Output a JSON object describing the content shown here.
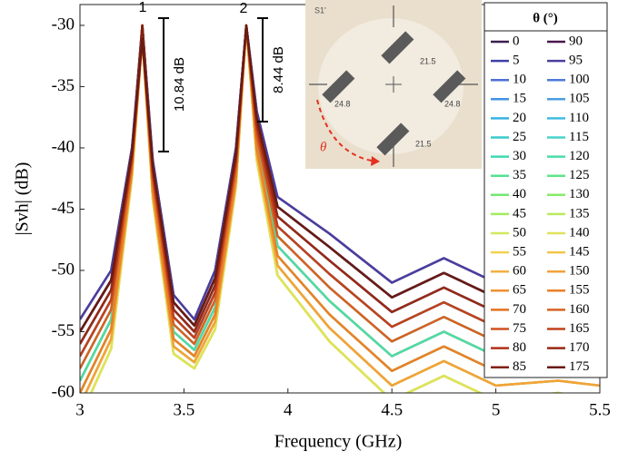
{
  "chart_data": {
    "type": "line",
    "xlabel": "Frequency (GHz)",
    "ylabel": "|Svh| (dB)",
    "xlim": [
      3,
      5.5
    ],
    "ylim": [
      -60,
      -28.3
    ],
    "xticks": [
      3,
      3.5,
      4,
      4.5,
      5,
      5.5
    ],
    "yticks": [
      -60,
      -55,
      -50,
      -45,
      -40,
      -35,
      -30
    ],
    "legend_title": "θ (°)",
    "legend": "upper right",
    "annotations": [
      "1",
      "2",
      "10.84 dB",
      "8.44 dB"
    ],
    "inset": {
      "label": "S1'",
      "values": [
        "21.5",
        "24.8",
        "24.8",
        "21.5"
      ],
      "angle": "θ"
    },
    "x": [
      3.0,
      3.15,
      3.25,
      3.3,
      3.35,
      3.45,
      3.55,
      3.65,
      3.75,
      3.8,
      3.85,
      3.95,
      4.2,
      4.5,
      4.75,
      5.0,
      5.3,
      5.5
    ],
    "series": [
      {
        "name": "0",
        "color": "#3b1f50",
        "values": [
          -54,
          -50,
          -40,
          -30,
          -41,
          -52,
          -54,
          -50,
          -40,
          -30,
          -37,
          -44,
          -47,
          -51,
          -49,
          -51,
          -52,
          -51
        ]
      },
      {
        "name": "5",
        "color": "#3e3fa8",
        "values": [
          -55,
          -50.8,
          -40.3,
          -30,
          -41.4,
          -52.6,
          -54.5,
          -50.6,
          -40.4,
          -30,
          -37.5,
          -44.8,
          -48.1,
          -52.2,
          -50.2,
          -52.2,
          -53,
          -52.2
        ]
      },
      {
        "name": "10",
        "color": "#4a6fd4",
        "values": [
          -55,
          -50.8,
          -40.3,
          -30,
          -41.4,
          -52.6,
          -54.5,
          -50.6,
          -40.4,
          -30,
          -37.5,
          -44.8,
          -48.1,
          -52.2,
          -50.2,
          -52.2,
          -53,
          -52.2
        ]
      },
      {
        "name": "15",
        "color": "#3f93e4",
        "values": [
          -56,
          -51.6,
          -40.6,
          -30,
          -41.8,
          -53.2,
          -55,
          -51.2,
          -40.8,
          -30,
          -38,
          -45.6,
          -49.2,
          -53.4,
          -51.4,
          -53.4,
          -54,
          -53.4
        ]
      },
      {
        "name": "20",
        "color": "#36b3e2",
        "values": [
          -57,
          -52.4,
          -40.9,
          -30,
          -42.2,
          -53.8,
          -55.5,
          -51.8,
          -41.2,
          -30,
          -38.5,
          -46.4,
          -50.3,
          -54.6,
          -52.6,
          -54.6,
          -55,
          -54.6
        ]
      },
      {
        "name": "25",
        "color": "#38cacc",
        "values": [
          -58,
          -53.2,
          -41.2,
          -30,
          -42.6,
          -54.4,
          -56,
          -52.4,
          -41.6,
          -30,
          -39,
          -47.2,
          -51.4,
          -55.8,
          -53.8,
          -55.8,
          -56,
          -55.8
        ]
      },
      {
        "name": "30",
        "color": "#3fdab2",
        "values": [
          -59,
          -54,
          -41.5,
          -30,
          -43,
          -55,
          -56.5,
          -53,
          -42,
          -30,
          -39.5,
          -48,
          -52.5,
          -57,
          -55,
          -57,
          -57,
          -57
        ]
      },
      {
        "name": "35",
        "color": "#52e292",
        "values": [
          -60,
          -54.8,
          -41.8,
          -30,
          -43.4,
          -55.6,
          -57,
          -53.6,
          -42.4,
          -30,
          -40,
          -48.8,
          -53.6,
          -58.2,
          -56.2,
          -58.2,
          -58,
          -58.2
        ]
      },
      {
        "name": "40",
        "color": "#72e872",
        "values": [
          -61,
          -55.6,
          -42.1,
          -30,
          -43.8,
          -56.2,
          -57.5,
          -54.2,
          -42.8,
          -30,
          -40.5,
          -49.6,
          -54.7,
          -59.4,
          -57.4,
          -59.4,
          -59,
          -59.4
        ]
      },
      {
        "name": "45",
        "color": "#a2ec5e",
        "values": [
          -62,
          -56.4,
          -42.4,
          -30,
          -44.2,
          -56.8,
          -58,
          -54.8,
          -43.2,
          -30,
          -41,
          -50.4,
          -55.8,
          -60.6,
          -58.6,
          -60.6,
          -60,
          -60.6
        ]
      },
      {
        "name": "50",
        "color": "#d2e85c",
        "values": [
          -62,
          -56.4,
          -42.4,
          -30,
          -44.2,
          -56.8,
          -58,
          -54.8,
          -43.2,
          -30,
          -41,
          -50.4,
          -55.8,
          -60.6,
          -58.6,
          -60.6,
          -60,
          -60.6
        ]
      },
      {
        "name": "55",
        "color": "#f2d050",
        "values": [
          -62,
          -56.4,
          -42.4,
          -30,
          -44.2,
          -56.8,
          -58,
          -54.8,
          -43.2,
          -30,
          -41,
          -50.4,
          -55.8,
          -60.6,
          -58.6,
          -60.6,
          -60,
          -60.6
        ]
      },
      {
        "name": "60",
        "color": "#f2b040",
        "values": [
          -61,
          -55.6,
          -42.1,
          -30,
          -43.8,
          -56.2,
          -57.5,
          -54.2,
          -42.8,
          -30,
          -40.5,
          -49.6,
          -54.7,
          -59.4,
          -57.4,
          -59.4,
          -59,
          -59.4
        ]
      },
      {
        "name": "65",
        "color": "#f09030",
        "values": [
          -60,
          -54.8,
          -41.8,
          -30,
          -43.4,
          -55.6,
          -57,
          -53.6,
          -42.4,
          -30,
          -40,
          -48.8,
          -53.6,
          -58.2,
          -56.2,
          -58.2,
          -58,
          -58.2
        ]
      },
      {
        "name": "70",
        "color": "#e27022",
        "values": [
          -59,
          -54,
          -41.5,
          -30,
          -43,
          -55,
          -56.5,
          -53,
          -42,
          -30,
          -39.5,
          -48,
          -52.5,
          -57,
          -55,
          -57,
          -57,
          -57
        ]
      },
      {
        "name": "75",
        "color": "#d05020",
        "values": [
          -57,
          -52.4,
          -40.9,
          -30,
          -42.2,
          -53.8,
          -55.5,
          -51.8,
          -41.2,
          -30,
          -38.5,
          -46.4,
          -50.3,
          -54.6,
          -52.6,
          -54.6,
          -55,
          -54.6
        ]
      },
      {
        "name": "80",
        "color": "#b03018",
        "values": [
          -56,
          -51.6,
          -40.6,
          -30,
          -41.8,
          -53.2,
          -55,
          -51.2,
          -40.8,
          -30,
          -38,
          -45.6,
          -49.2,
          -53.4,
          -51.4,
          -53.4,
          -54,
          -53.4
        ]
      },
      {
        "name": "85",
        "color": "#802010",
        "values": [
          -55,
          -50.8,
          -40.3,
          -30,
          -41.4,
          -52.6,
          -54.5,
          -50.6,
          -40.4,
          -30,
          -37.5,
          -44.8,
          -48.1,
          -52.2,
          -50.2,
          -52.2,
          -53,
          -52.2
        ]
      },
      {
        "name": "90",
        "color": "#4a1850",
        "values": [
          -55,
          -50.8,
          -40.3,
          -31,
          -41.4,
          -52.6,
          -54.5,
          -50.6,
          -40.4,
          -30,
          -37.5,
          -44.8,
          -48.1,
          -52.2,
          -50.2,
          -52.2,
          -53,
          -52.2
        ]
      },
      {
        "name": "95",
        "color": "#4a3ea0",
        "values": [
          -54,
          -50,
          -40,
          -31,
          -41,
          -52,
          -54,
          -50,
          -40,
          -30,
          -37,
          -44,
          -47,
          -51,
          -49,
          -51,
          -52,
          -51
        ]
      },
      {
        "name": "100",
        "color": "#4f78d8",
        "values": [
          -55,
          -50.8,
          -40.3,
          -31,
          -41.4,
          -52.6,
          -54.5,
          -50.6,
          -40.4,
          -30,
          -37.5,
          -44.8,
          -48.1,
          -52.2,
          -50.2,
          -52.2,
          -53,
          -52.2
        ]
      },
      {
        "name": "105",
        "color": "#4a9ee0",
        "values": [
          -56,
          -51.6,
          -40.6,
          -31,
          -41.8,
          -53.2,
          -55,
          -51.2,
          -40.8,
          -30,
          -38,
          -45.6,
          -49.2,
          -53.4,
          -51.4,
          -53.4,
          -54,
          -53.4
        ]
      },
      {
        "name": "110",
        "color": "#40bce0",
        "values": [
          -57,
          -52.4,
          -40.9,
          -31,
          -42.2,
          -53.8,
          -55.5,
          -51.8,
          -41.2,
          -30,
          -38.5,
          -46.4,
          -50.3,
          -54.6,
          -52.6,
          -54.6,
          -55,
          -54.6
        ]
      },
      {
        "name": "115",
        "color": "#48d2c8",
        "values": [
          -58,
          -53.2,
          -41.2,
          -31,
          -42.6,
          -54.4,
          -56,
          -52.4,
          -41.6,
          -30,
          -39,
          -47.2,
          -51.4,
          -55.8,
          -53.8,
          -55.8,
          -56,
          -55.8
        ]
      },
      {
        "name": "120",
        "color": "#4cdca8",
        "values": [
          -59,
          -54,
          -41.5,
          -31,
          -43,
          -55,
          -56.5,
          -53,
          -42,
          -30,
          -39.5,
          -48,
          -52.5,
          -57,
          -55,
          -57,
          -57,
          -57
        ]
      },
      {
        "name": "125",
        "color": "#62e488",
        "values": [
          -60,
          -54.8,
          -41.8,
          -31,
          -43.4,
          -55.6,
          -57,
          -53.6,
          -42.4,
          -30,
          -40,
          -48.8,
          -53.6,
          -58.2,
          -56.2,
          -58.2,
          -58,
          -58.2
        ]
      },
      {
        "name": "130",
        "color": "#86ea6a",
        "values": [
          -61,
          -55.6,
          -42.1,
          -31,
          -43.8,
          -56.2,
          -57.5,
          -54.2,
          -42.8,
          -30,
          -40.5,
          -49.6,
          -54.7,
          -59.4,
          -57.4,
          -59.4,
          -59,
          -59.4
        ]
      },
      {
        "name": "135",
        "color": "#b8ec5c",
        "values": [
          -62,
          -56.4,
          -42.4,
          -31,
          -44.2,
          -56.8,
          -58,
          -54.8,
          -43.2,
          -30,
          -41,
          -50.4,
          -55.8,
          -60.6,
          -58.6,
          -60.6,
          -60,
          -60.6
        ]
      },
      {
        "name": "140",
        "color": "#e0e25a",
        "values": [
          -62,
          -56.4,
          -42.4,
          -31,
          -44.2,
          -56.8,
          -58,
          -54.8,
          -43.2,
          -30,
          -41,
          -50.4,
          -55.8,
          -60.6,
          -58.6,
          -60.6,
          -60,
          -60.6
        ]
      },
      {
        "name": "145",
        "color": "#f4c44a",
        "values": [
          -61,
          -55.6,
          -42.1,
          -31,
          -43.8,
          -56.2,
          -57.5,
          -54.2,
          -42.8,
          -30,
          -40.5,
          -49.6,
          -54.7,
          -59.4,
          -57.4,
          -59.4,
          -59,
          -59.4
        ]
      },
      {
        "name": "150",
        "color": "#f2a23a",
        "values": [
          -61,
          -55.6,
          -42.1,
          -31,
          -43.8,
          -56.2,
          -57.5,
          -54.2,
          -42.8,
          -30,
          -40.5,
          -49.6,
          -54.7,
          -59.4,
          -57.4,
          -59.4,
          -59,
          -59.4
        ]
      },
      {
        "name": "155",
        "color": "#ea8028",
        "values": [
          -60,
          -54.8,
          -41.8,
          -31,
          -43.4,
          -55.6,
          -57,
          -53.6,
          -42.4,
          -30,
          -40,
          -48.8,
          -53.6,
          -58.2,
          -56.2,
          -58.2,
          -58,
          -58.2
        ]
      },
      {
        "name": "160",
        "color": "#d86020",
        "values": [
          -58,
          -53.2,
          -41.2,
          -31,
          -42.6,
          -54.4,
          -56,
          -52.4,
          -41.6,
          -30,
          -39,
          -47.2,
          -51.4,
          -55.8,
          -53.8,
          -55.8,
          -56,
          -55.8
        ]
      },
      {
        "name": "165",
        "color": "#c0401c",
        "values": [
          -57,
          -52.4,
          -40.9,
          -31,
          -42.2,
          -53.8,
          -55.5,
          -51.8,
          -41.2,
          -30,
          -38.5,
          -46.4,
          -50.3,
          -54.6,
          -52.6,
          -54.6,
          -55,
          -54.6
        ]
      },
      {
        "name": "170",
        "color": "#982814",
        "values": [
          -56,
          -51.6,
          -40.6,
          -31,
          -41.8,
          -53.2,
          -55,
          -51.2,
          -40.8,
          -30,
          -38,
          -45.6,
          -49.2,
          -53.4,
          -51.4,
          -53.4,
          -54,
          -53.4
        ]
      },
      {
        "name": "175",
        "color": "#6a1a10",
        "values": [
          -55,
          -50.8,
          -40.3,
          -31,
          -41.4,
          -52.6,
          -54.5,
          -50.6,
          -40.4,
          -30,
          -37.5,
          -44.8,
          -48.1,
          -52.2,
          -50.2,
          -52.2,
          -53,
          -52.2
        ]
      }
    ]
  }
}
